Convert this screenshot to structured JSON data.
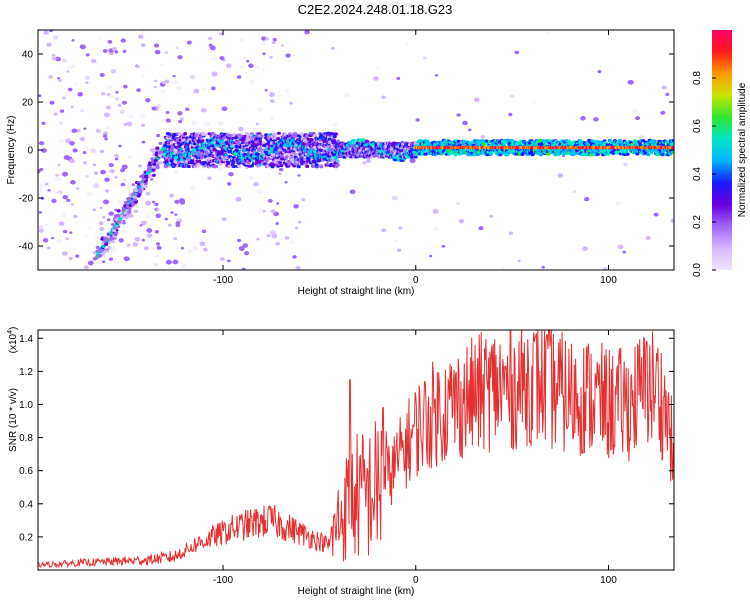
{
  "title": "C2E2.2024.248.01.18.G23",
  "chart_data": [
    {
      "type": "heatmap",
      "xlabel": "Height of straight line (km)",
      "ylabel": "Frequency (Hz)",
      "xlim": [
        -196,
        134
      ],
      "ylim": [
        -50,
        50
      ],
      "x_ticks": [
        -100,
        0,
        100
      ],
      "y_ticks": [
        -40,
        -20,
        0,
        20,
        40
      ],
      "colorbar": {
        "label": "Normalized spectral amplitude",
        "range": [
          0.0,
          1.0
        ],
        "ticks": [
          0.0,
          0.2,
          0.4,
          0.6,
          0.8
        ]
      },
      "ridge_segments": [
        {
          "x": [
            -165,
            -130
          ],
          "y": [
            -44,
            2
          ],
          "amplitude": 0.5
        },
        {
          "x": [
            -130,
            0
          ],
          "y": [
            0,
            0
          ],
          "amplitude": 0.45,
          "note": "noisy near-zero band"
        },
        {
          "x": [
            0,
            134
          ],
          "y": [
            1,
            1
          ],
          "amplitude": 0.85
        }
      ],
      "colors": [
        "#f0e6ff",
        "#d7b8ff",
        "#a066ff",
        "#6a00e0",
        "#1a1aff",
        "#00b4ff",
        "#00e6c8",
        "#2ee62e",
        "#c8e600",
        "#ff9a00",
        "#ff1a1a",
        "#ff0066"
      ]
    },
    {
      "type": "line",
      "xlabel": "Height of straight line (km)",
      "ylabel": "SNR (10 * v/v)",
      "y_scale_label": "(x10",
      "y_scale_exp": "4",
      "xlim": [
        -196,
        134
      ],
      "ylim": [
        0,
        14500
      ],
      "x_ticks": [
        -100,
        0,
        100
      ],
      "y_ticks": [
        0.2,
        0.4,
        0.6,
        0.8,
        1.0,
        1.2,
        1.4
      ],
      "line_color": "#e53030",
      "series": [
        {
          "x": [
            -196,
            -180,
            -160,
            -140,
            -125,
            -115,
            -105,
            -95,
            -85,
            -75,
            -65,
            -55,
            -45,
            -40,
            -35,
            -30,
            -25,
            -20,
            -15,
            -10,
            -5,
            0,
            10,
            20,
            30,
            40,
            50,
            60,
            70,
            80,
            90,
            100,
            110,
            120,
            125,
            130,
            134
          ],
          "values": [
            300,
            400,
            500,
            600,
            800,
            1500,
            2000,
            2500,
            2800,
            3000,
            2500,
            2000,
            1500,
            3000,
            4000,
            4500,
            4500,
            5000,
            5500,
            6500,
            7500,
            8500,
            9500,
            10000,
            10500,
            11000,
            11000,
            11500,
            11000,
            10500,
            10500,
            10000,
            10000,
            11000,
            11000,
            9500,
            7000
          ],
          "peaks": [
            {
              "x": -34,
              "y": 11500
            },
            {
              "x": -17,
              "y": 9800
            },
            {
              "x": 68,
              "y": 14200
            },
            {
              "x": 120,
              "y": 13800
            }
          ]
        }
      ]
    }
  ]
}
